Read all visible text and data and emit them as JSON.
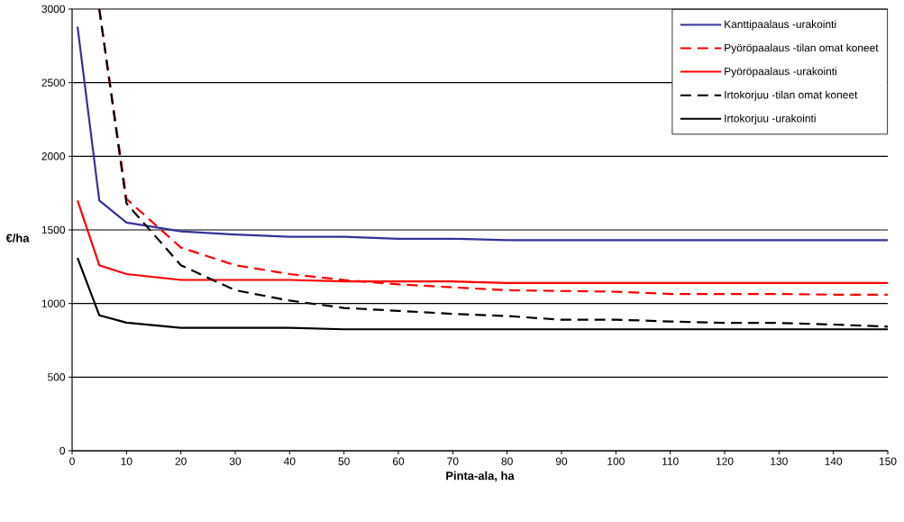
{
  "chart_data": {
    "type": "line",
    "xlabel": "Pinta-ala, ha",
    "ylabel": "€/ha",
    "x": [
      1,
      5,
      10,
      20,
      30,
      40,
      50,
      60,
      70,
      80,
      90,
      100,
      110,
      120,
      130,
      140,
      150
    ],
    "series": [
      {
        "name": "Kanttipaalaus -urakointi",
        "color": "#333399",
        "line_style": "solid",
        "values": [
          2880,
          1700,
          1550,
          1490,
          1468,
          1453,
          1453,
          1440,
          1440,
          1430,
          1430,
          1430,
          1430,
          1430,
          1430,
          1430,
          1430
        ]
      },
      {
        "name": "Pyöröpaalaus -tilan omat koneet",
        "color": "#ff0000",
        "line_style": "dashed",
        "values": [
          null,
          3000,
          1710,
          1380,
          1260,
          1200,
          1160,
          1130,
          1110,
          1090,
          1085,
          1080,
          1065,
          1065,
          1065,
          1060,
          1060
        ]
      },
      {
        "name": "Pyöröpaalaus -urakointi",
        "color": "#ff0000",
        "line_style": "solid",
        "values": [
          1700,
          1260,
          1200,
          1160,
          1160,
          1160,
          1150,
          1150,
          1150,
          1140,
          1140,
          1140,
          1140,
          1140,
          1140,
          1140,
          1140
        ]
      },
      {
        "name": "Irtokorjuu -tilan omat koneet",
        "color": "#000000",
        "line_style": "dashed",
        "values": [
          null,
          3000,
          1680,
          1260,
          1090,
          1020,
          970,
          950,
          930,
          915,
          890,
          890,
          878,
          868,
          868,
          857,
          843
        ]
      },
      {
        "name": "Irtokorjuu -urakointi",
        "color": "#000000",
        "line_style": "solid",
        "values": [
          1310,
          920,
          870,
          835,
          835,
          835,
          825,
          825,
          825,
          825,
          825,
          825,
          825,
          825,
          825,
          825,
          825
        ]
      }
    ],
    "xlim": [
      0,
      150
    ],
    "ylim": [
      0,
      3000
    ],
    "xticks": [
      0,
      10,
      20,
      30,
      40,
      50,
      60,
      70,
      80,
      90,
      100,
      110,
      120,
      130,
      140,
      150
    ],
    "yticks": [
      0,
      500,
      1000,
      1500,
      2000,
      2500,
      3000
    ],
    "grid": "y",
    "legend": "top right",
    "marker": "none"
  }
}
